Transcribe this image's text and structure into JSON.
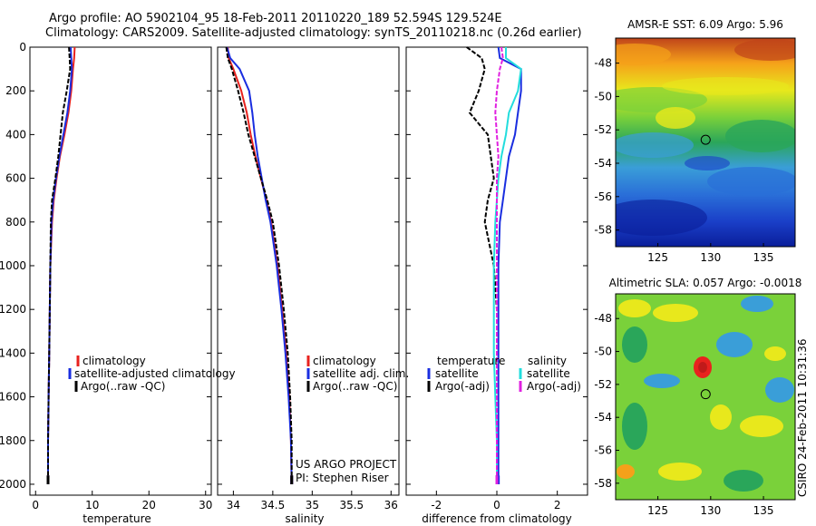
{
  "header": {
    "line1": "Argo profile: AO 5902104_95 18-Feb-2011 20110220_189 52.594S 129.524E",
    "line2": "Climatology: CARS2009. Satellite-adjusted climatology: synTS_20110218.nc (0.26d earlier)"
  },
  "credit": {
    "project": "US ARGO PROJECT",
    "pi": "PI: Stephen Riser",
    "stamp": "CSIRO 24-Feb-2011 10:31:36"
  },
  "colors": {
    "climatology": "#e8221e",
    "satellite": "#1a2ee0",
    "argo": "#000000",
    "satellite_salinity": "#22dddd",
    "argo_adj": "#e020e0"
  },
  "chart_data": [
    {
      "id": "temperature",
      "type": "line",
      "xlabel": "temperature",
      "ylabel": "",
      "xlim": [
        -1,
        31
      ],
      "ylim": [
        2050,
        0
      ],
      "xticks": [
        0,
        10,
        20,
        30
      ],
      "yticks": [
        0,
        200,
        400,
        600,
        800,
        1000,
        1200,
        1400,
        1600,
        1800,
        2000
      ],
      "legend": [
        "climatology",
        "satellite-adjusted climatology",
        "Argo(..raw -QC)"
      ],
      "series": [
        {
          "name": "climatology",
          "color": "#e8221e",
          "x": [
            6.9,
            6.8,
            6.6,
            6.3,
            5.8,
            5.1,
            4.3,
            3.7,
            3.2,
            2.9,
            2.6,
            2.5,
            2.4,
            2.3,
            2.2,
            2.2
          ],
          "y": [
            0,
            50,
            100,
            200,
            300,
            400,
            500,
            600,
            700,
            800,
            1000,
            1200,
            1400,
            1600,
            1800,
            2000
          ]
        },
        {
          "name": "satellite-adjusted climatology",
          "color": "#1a2ee0",
          "x": [
            6.2,
            6.3,
            6.4,
            6.1,
            5.6,
            4.9,
            4.2,
            3.6,
            3.1,
            2.8,
            2.6,
            2.5,
            2.4,
            2.3,
            2.2,
            2.2
          ],
          "y": [
            0,
            50,
            100,
            200,
            300,
            400,
            500,
            600,
            700,
            800,
            1000,
            1200,
            1400,
            1600,
            1800,
            2000
          ]
        },
        {
          "name": "Argo(..raw -QC)",
          "color": "#000000",
          "dash": true,
          "x": [
            5.9,
            6.0,
            6.1,
            5.5,
            4.8,
            4.4,
            4.0,
            3.5,
            2.9,
            2.7,
            2.6,
            2.5,
            2.4,
            2.3,
            2.2,
            2.2
          ],
          "y": [
            0,
            50,
            100,
            200,
            300,
            400,
            500,
            600,
            700,
            800,
            1000,
            1200,
            1400,
            1600,
            1800,
            1980
          ]
        }
      ]
    },
    {
      "id": "salinity",
      "type": "line",
      "xlabel": "salinity",
      "ylabel": "",
      "xlim": [
        33.8,
        36.1
      ],
      "ylim": [
        2050,
        0
      ],
      "xticks": [
        34,
        34.5,
        35,
        35.5,
        36
      ],
      "yticks": [
        0,
        200,
        400,
        600,
        800,
        1000,
        1200,
        1400,
        1600,
        1800,
        2000
      ],
      "legend": [
        "climatology",
        "satellite adj. clim.",
        "Argo(..raw -QC)"
      ],
      "series": [
        {
          "name": "climatology",
          "color": "#e8221e",
          "x": [
            33.93,
            33.94,
            34.0,
            34.1,
            34.17,
            34.22,
            34.28,
            34.35,
            34.42,
            34.48,
            34.56,
            34.62,
            34.67,
            34.71,
            34.73,
            34.74
          ],
          "y": [
            0,
            50,
            100,
            200,
            300,
            400,
            500,
            600,
            700,
            800,
            1000,
            1200,
            1400,
            1600,
            1800,
            2000
          ]
        },
        {
          "name": "satellite adj. clim.",
          "color": "#1a2ee0",
          "x": [
            33.92,
            33.96,
            34.08,
            34.2,
            34.24,
            34.27,
            34.31,
            34.36,
            34.41,
            34.47,
            34.55,
            34.61,
            34.66,
            34.7,
            34.73,
            34.74
          ],
          "y": [
            0,
            50,
            100,
            200,
            300,
            400,
            500,
            600,
            700,
            800,
            1000,
            1200,
            1400,
            1600,
            1800,
            2000
          ]
        },
        {
          "name": "Argo(..raw -QC)",
          "color": "#000000",
          "dash": true,
          "x": [
            33.91,
            33.93,
            33.98,
            34.06,
            34.13,
            34.19,
            34.27,
            34.35,
            34.43,
            34.5,
            34.58,
            34.64,
            34.69,
            34.72,
            34.74,
            34.74
          ],
          "y": [
            0,
            50,
            100,
            200,
            300,
            400,
            500,
            600,
            700,
            800,
            1000,
            1200,
            1400,
            1600,
            1800,
            1980
          ]
        }
      ]
    },
    {
      "id": "difference",
      "type": "line",
      "xlabel": "difference from climatology",
      "ylabel": "",
      "xlim": [
        -3,
        3
      ],
      "ylim": [
        2050,
        0
      ],
      "xticks": [
        -2,
        0,
        2
      ],
      "yticks": [
        0,
        200,
        400,
        600,
        800,
        1000,
        1200,
        1400,
        1600,
        1800,
        2000
      ],
      "legend": [
        "temperature",
        "satellite",
        "Argo(-adj)",
        "salinity",
        "satellite",
        "Argo(-adj)"
      ],
      "series": [
        {
          "name": "temperature satellite",
          "color": "#1a2ee0",
          "x": [
            0.05,
            0.1,
            0.8,
            0.8,
            0.7,
            0.6,
            0.4,
            0.3,
            0.2,
            0.1,
            0.05,
            0.05,
            0.05,
            0.05,
            0.05,
            0.05
          ],
          "y": [
            0,
            50,
            100,
            200,
            300,
            400,
            500,
            600,
            700,
            800,
            1000,
            1200,
            1400,
            1600,
            1800,
            2000
          ]
        },
        {
          "name": "temperature Argo(-adj)",
          "color": "#000000",
          "dash": true,
          "x": [
            -1.0,
            -0.5,
            -0.4,
            -0.6,
            -0.9,
            -0.3,
            -0.2,
            -0.1,
            -0.3,
            -0.4,
            -0.1,
            0.0,
            0.0,
            0.0,
            0.0,
            0.0
          ],
          "y": [
            0,
            50,
            100,
            200,
            300,
            400,
            500,
            600,
            700,
            800,
            1000,
            1200,
            1400,
            1600,
            1800,
            1980
          ]
        },
        {
          "name": "salinity satellite",
          "color": "#22dddd",
          "x": [
            0.3,
            0.3,
            0.8,
            0.7,
            0.4,
            0.3,
            0.15,
            0.05,
            0.0,
            -0.05,
            -0.1,
            -0.1,
            -0.1,
            -0.05,
            0.0,
            0.0
          ],
          "y": [
            0,
            50,
            100,
            200,
            300,
            400,
            500,
            600,
            700,
            800,
            1000,
            1200,
            1400,
            1600,
            1800,
            2000
          ]
        },
        {
          "name": "salinity Argo(-adj)",
          "color": "#e020e0",
          "dash": true,
          "x": [
            0.15,
            0.2,
            0.1,
            0.0,
            -0.05,
            0.0,
            0.05,
            0.0,
            0.0,
            0.0,
            0.0,
            0.0,
            0.0,
            0.0,
            0.0,
            0.0
          ],
          "y": [
            0,
            50,
            100,
            200,
            300,
            400,
            500,
            600,
            700,
            800,
            1000,
            1200,
            1400,
            1600,
            1800,
            2000
          ]
        }
      ]
    },
    {
      "id": "sst-map",
      "type": "heatmap",
      "title": "AMSR-E SST: 6.09 Argo: 5.96",
      "xticks": [
        125,
        130,
        135
      ],
      "yticks": [
        -48,
        -50,
        -52,
        -54,
        -56,
        -58
      ],
      "xlim": [
        121,
        138
      ],
      "ylim": [
        -59,
        -46.5
      ],
      "marker": {
        "lon": 129.524,
        "lat": -52.594
      }
    },
    {
      "id": "sla-map",
      "type": "heatmap",
      "title": "Altimetric SLA: 0.057 Argo: -0.0018",
      "xticks": [
        125,
        130,
        135
      ],
      "yticks": [
        -48,
        -50,
        -52,
        -54,
        -56,
        -58
      ],
      "xlim": [
        121,
        138
      ],
      "ylim": [
        -59,
        -46.5
      ],
      "marker": {
        "lon": 129.524,
        "lat": -52.594
      }
    }
  ]
}
